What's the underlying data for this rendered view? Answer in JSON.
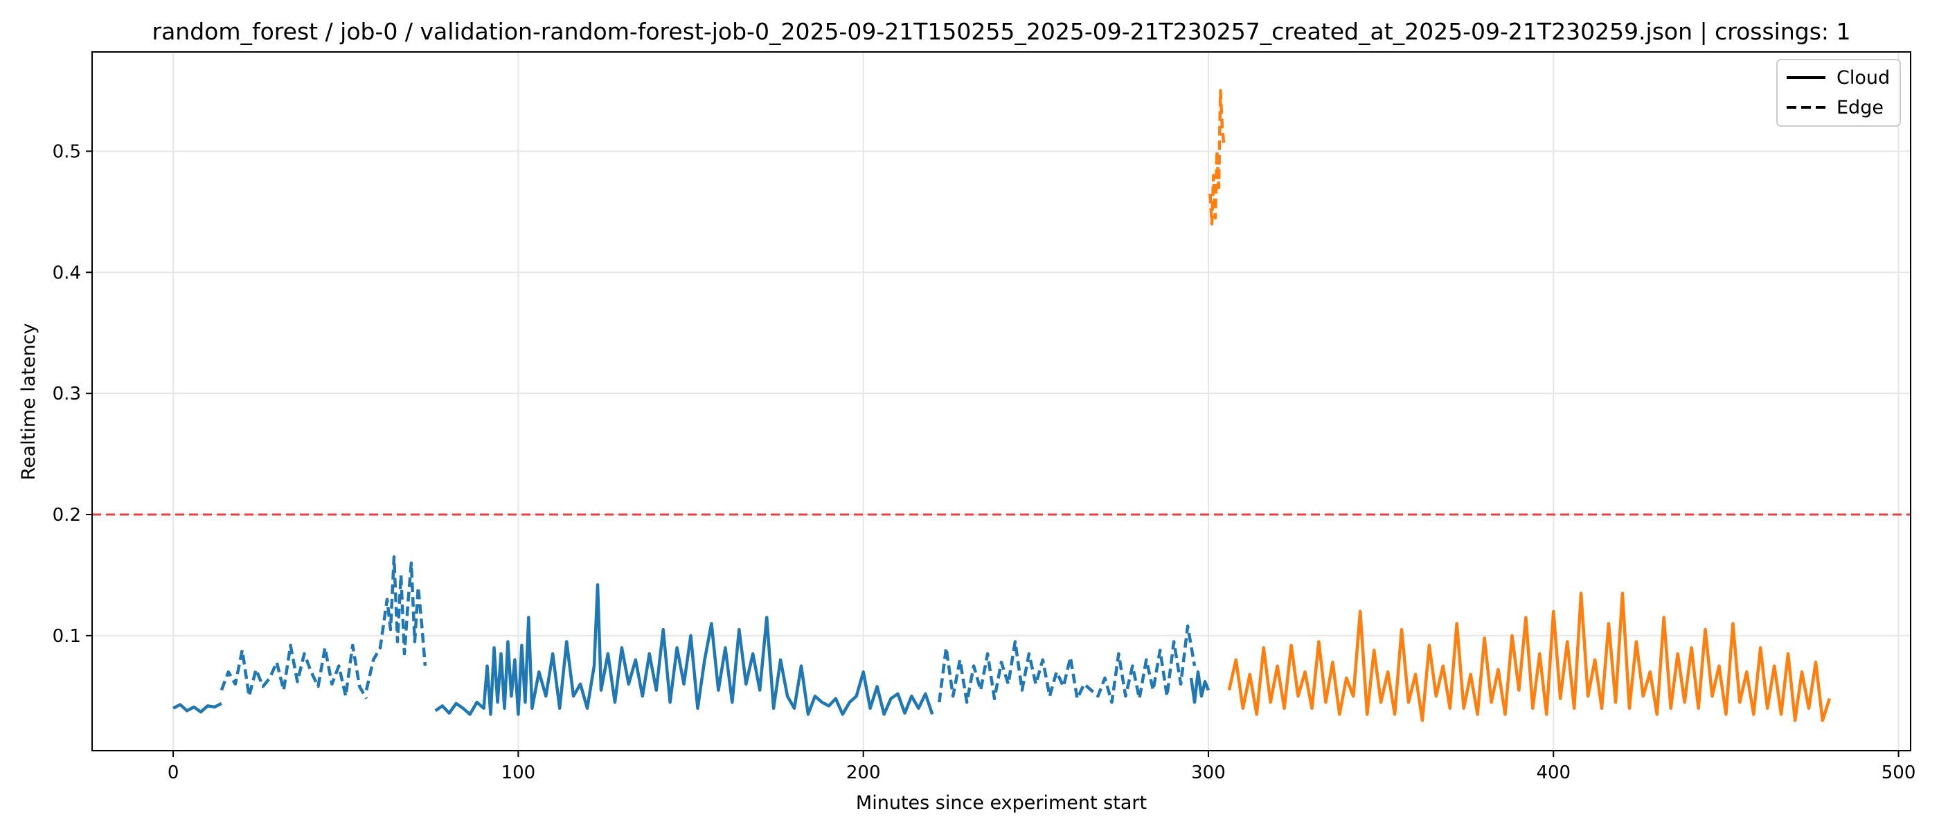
{
  "chart_data": {
    "type": "line",
    "title": "random_forest / job-0 / validation-random-forest-job-0_2025-09-21T150255_2025-09-21T230257_created_at_2025-09-21T230259.json  |  crossings: 1",
    "xlabel": "Minutes since experiment start",
    "ylabel": "Realtime latency",
    "xlim": [
      -23.5,
      503.5
    ],
    "ylim": [
      0.005,
      0.582
    ],
    "x_ticks": [
      0,
      100,
      200,
      300,
      400,
      500
    ],
    "y_ticks": [
      0.1,
      0.2,
      0.3,
      0.4,
      0.5
    ],
    "x_tick_labels": [
      "0",
      "100",
      "200",
      "300",
      "400",
      "500"
    ],
    "y_tick_labels": [
      "0.1",
      "0.2",
      "0.3",
      "0.4",
      "0.5"
    ],
    "grid": true,
    "threshold": {
      "value": 0.2,
      "color": "#e83e3e",
      "style": "dashed"
    },
    "legend": {
      "placement": "top-right",
      "entries": [
        {
          "label": "Cloud",
          "style": "solid"
        },
        {
          "label": "Edge",
          "style": "dashed"
        }
      ]
    },
    "colors": {
      "series_a": "#1f77b4",
      "series_b": "#ff7f0e",
      "threshold": "#e83e3e"
    },
    "series": [
      {
        "color": "#1f77b4",
        "style": "solid",
        "x": [
          0,
          2,
          4,
          6,
          8,
          10,
          12,
          14
        ],
        "y": [
          0.04,
          0.043,
          0.038,
          0.041,
          0.037,
          0.042,
          0.041,
          0.044
        ]
      },
      {
        "color": "#1f77b4",
        "style": "dashed",
        "x": [
          14,
          16,
          18,
          20,
          22,
          24,
          26,
          28,
          30,
          32,
          34,
          36,
          38,
          40,
          42,
          44,
          46,
          48,
          50,
          52,
          54,
          56
        ],
        "y": [
          0.055,
          0.07,
          0.06,
          0.088,
          0.05,
          0.072,
          0.058,
          0.065,
          0.078,
          0.055,
          0.092,
          0.062,
          0.085,
          0.07,
          0.058,
          0.09,
          0.06,
          0.075,
          0.05,
          0.092,
          0.058,
          0.048
        ]
      },
      {
        "color": "#1f77b4",
        "style": "dashed",
        "x": [
          56,
          58,
          60,
          62,
          63,
          64,
          65,
          66,
          67,
          68,
          69,
          70,
          71,
          72,
          73
        ],
        "y": [
          0.055,
          0.08,
          0.09,
          0.13,
          0.105,
          0.165,
          0.095,
          0.15,
          0.085,
          0.125,
          0.16,
          0.095,
          0.14,
          0.11,
          0.075
        ]
      },
      {
        "color": "#1f77b4",
        "style": "solid",
        "x": [
          76,
          78,
          80,
          82,
          84,
          86,
          88,
          90,
          91,
          92,
          93,
          94,
          95,
          96,
          97,
          98,
          99,
          100,
          101,
          102,
          103,
          104,
          106,
          108,
          110,
          112,
          114,
          116,
          118,
          120,
          122,
          123,
          124,
          126,
          128,
          130,
          132,
          134,
          136,
          138,
          140,
          142,
          144,
          146,
          148,
          150,
          152,
          154,
          156,
          158,
          160,
          162,
          164,
          166,
          168,
          170,
          172,
          174,
          176,
          178,
          180,
          182,
          184,
          186,
          188,
          190,
          192,
          194,
          196,
          198,
          200,
          202,
          204,
          206,
          208,
          210,
          212,
          214,
          216,
          218,
          220
        ],
        "y": [
          0.038,
          0.042,
          0.036,
          0.044,
          0.04,
          0.035,
          0.045,
          0.04,
          0.075,
          0.035,
          0.09,
          0.045,
          0.085,
          0.04,
          0.095,
          0.05,
          0.08,
          0.035,
          0.092,
          0.045,
          0.115,
          0.04,
          0.07,
          0.05,
          0.085,
          0.04,
          0.095,
          0.05,
          0.06,
          0.04,
          0.075,
          0.142,
          0.055,
          0.085,
          0.045,
          0.09,
          0.06,
          0.08,
          0.05,
          0.085,
          0.055,
          0.105,
          0.045,
          0.09,
          0.06,
          0.1,
          0.04,
          0.08,
          0.11,
          0.055,
          0.09,
          0.045,
          0.105,
          0.06,
          0.085,
          0.055,
          0.115,
          0.04,
          0.08,
          0.05,
          0.04,
          0.075,
          0.035,
          0.05,
          0.045,
          0.042,
          0.048,
          0.035,
          0.045,
          0.05,
          0.07,
          0.04,
          0.058,
          0.035,
          0.048,
          0.052,
          0.036,
          0.05,
          0.04,
          0.052,
          0.035
        ]
      },
      {
        "color": "#1f77b4",
        "style": "dashed",
        "x": [
          222,
          224,
          226,
          228,
          230,
          232,
          234,
          236,
          238,
          240,
          242,
          244,
          246,
          248,
          250,
          252,
          254,
          256,
          258,
          260,
          262,
          264,
          266,
          268,
          270,
          272,
          274,
          276,
          278,
          280,
          282,
          284,
          286,
          288,
          290,
          292,
          294,
          296
        ],
        "y": [
          0.045,
          0.09,
          0.05,
          0.08,
          0.045,
          0.075,
          0.055,
          0.085,
          0.048,
          0.078,
          0.06,
          0.095,
          0.055,
          0.085,
          0.06,
          0.08,
          0.05,
          0.07,
          0.058,
          0.082,
          0.048,
          0.06,
          0.055,
          0.05,
          0.065,
          0.045,
          0.085,
          0.05,
          0.075,
          0.048,
          0.08,
          0.055,
          0.088,
          0.05,
          0.095,
          0.06,
          0.108,
          0.075
        ]
      },
      {
        "color": "#1f77b4",
        "style": "solid",
        "x": [
          295,
          296,
          297,
          298,
          299,
          300
        ],
        "y": [
          0.065,
          0.045,
          0.07,
          0.05,
          0.062,
          0.055
        ]
      },
      {
        "color": "#ff7f0e",
        "style": "dashed",
        "x": [
          300.5,
          301,
          301.5,
          302,
          302.5,
          303,
          303.5,
          304,
          304.5
        ],
        "y": [
          0.465,
          0.44,
          0.48,
          0.445,
          0.5,
          0.47,
          0.55,
          0.52,
          0.505
        ]
      },
      {
        "color": "#ff7f0e",
        "style": "solid",
        "x": [
          306,
          308,
          310,
          312,
          314,
          316,
          318,
          320,
          322,
          324,
          326,
          328,
          330,
          332,
          334,
          336,
          338,
          340,
          342,
          344,
          346,
          348,
          350,
          352,
          354,
          356,
          358,
          360,
          362,
          364,
          366,
          368,
          370,
          372,
          374,
          376,
          378,
          380,
          382,
          384,
          386,
          388,
          390,
          392,
          394,
          396,
          398,
          400,
          402,
          404,
          406,
          408,
          410,
          412,
          414,
          416,
          418,
          420,
          422,
          424,
          426,
          428,
          430,
          432,
          434,
          436,
          438,
          440,
          442,
          444,
          446,
          448,
          450,
          452,
          454,
          456,
          458,
          460,
          462,
          464,
          466,
          468,
          470,
          472,
          474,
          476,
          478,
          480
        ],
        "y": [
          0.055,
          0.08,
          0.04,
          0.068,
          0.035,
          0.09,
          0.045,
          0.075,
          0.04,
          0.092,
          0.05,
          0.07,
          0.04,
          0.095,
          0.045,
          0.078,
          0.035,
          0.065,
          0.05,
          0.12,
          0.035,
          0.088,
          0.045,
          0.07,
          0.035,
          0.105,
          0.045,
          0.068,
          0.03,
          0.092,
          0.05,
          0.075,
          0.04,
          0.11,
          0.04,
          0.068,
          0.035,
          0.098,
          0.045,
          0.072,
          0.035,
          0.1,
          0.055,
          0.115,
          0.04,
          0.085,
          0.035,
          0.12,
          0.048,
          0.095,
          0.04,
          0.135,
          0.05,
          0.08,
          0.04,
          0.11,
          0.045,
          0.135,
          0.04,
          0.095,
          0.05,
          0.07,
          0.035,
          0.115,
          0.04,
          0.085,
          0.045,
          0.09,
          0.04,
          0.105,
          0.05,
          0.075,
          0.035,
          0.11,
          0.045,
          0.07,
          0.035,
          0.09,
          0.04,
          0.075,
          0.035,
          0.085,
          0.03,
          0.07,
          0.04,
          0.078,
          0.03,
          0.048
        ]
      }
    ]
  }
}
